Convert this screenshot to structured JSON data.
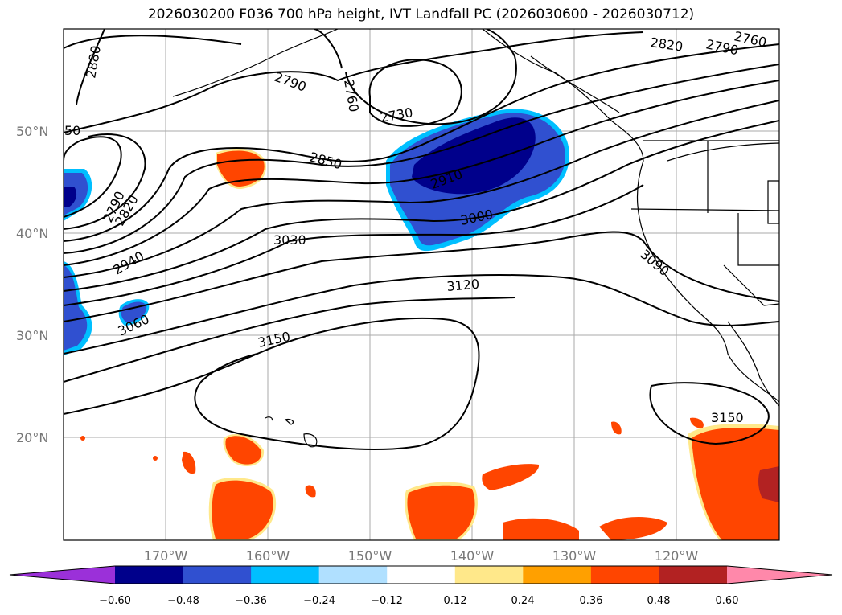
{
  "title": "2026030200 F036 700 hPa height, IVT Landfall PC (2026030600 - 2026030712)",
  "lat_labels": [
    "50°N",
    "40°N",
    "30°N",
    "20°N"
  ],
  "lon_labels": [
    "170°W",
    "160°W",
    "150°W",
    "140°W",
    "130°W",
    "120°W"
  ],
  "contour_labels": [
    "2880",
    "2790",
    "2760",
    "2730",
    "2820",
    "2790",
    "2760",
    "50",
    "2850",
    "2790",
    "2820",
    "2910",
    "3000",
    "2940",
    "3030",
    "3090",
    "3120",
    "3060",
    "3150",
    "3150"
  ],
  "colorbar": {
    "ticks": [
      "−0.60",
      "−0.48",
      "−0.36",
      "−0.24",
      "−0.12",
      "0.12",
      "0.24",
      "0.36",
      "0.48",
      "0.60"
    ],
    "colors": [
      "#9b30d9",
      "#00008b",
      "#3050d0",
      "#00bfff",
      "#b0e0ff",
      "#ffffff",
      "#ffe88a",
      "#ffa000",
      "#ff4500",
      "#b22222",
      "#ff88aa"
    ]
  }
}
